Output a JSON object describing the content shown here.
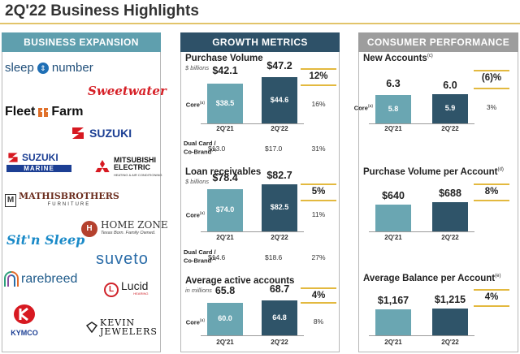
{
  "page": {
    "title": "2Q'22 Business Highlights"
  },
  "headers": {
    "business": "BUSINESS EXPANSION",
    "growth": "GROWTH METRICS",
    "consumer": "CONSUMER PERFORMANCE"
  },
  "colors": {
    "light_bar": "#6aa6b2",
    "dark_bar": "#2f5469",
    "gold_accent": "#e3b93f",
    "biz_header": "#5f9fae",
    "growth_header": "#2e5168",
    "consumer_header": "#9d9d9d"
  },
  "logos": {
    "sleep_number_a": "sleep",
    "sleep_number_b": "number",
    "sweetwater": "Sweetwater",
    "fleet_farm_a": "Fleet",
    "fleet_farm_b": "Farm",
    "suzuki": "SUZUKI",
    "suzuki_marine_a": "SUZUKI",
    "suzuki_marine_b": "MARINE",
    "mitsubishi_a": "MITSUBISHI",
    "mitsubishi_b": "ELECTRIC",
    "mitsubishi_c": "HEATING & AIR CONDITIONING",
    "mathis_a": "MATHISBROTHERS",
    "mathis_b": "FURNITURE",
    "homezone_a": "HOME ZONE",
    "homezone_b": "Texas Born. Family Owned.",
    "sitnsleep": "Sit'n Sleep",
    "suveto": "suveto",
    "rarebreed": "rarebreed",
    "lucid_a": "Lucid",
    "lucid_b": "HEARING",
    "kymco": "KYMCO",
    "kevin_a": "KEVIN",
    "kevin_b": "JEWELERS"
  },
  "chart_data": [
    {
      "type": "bar",
      "title": "Purchase Volume",
      "subtitle": "$ billions",
      "categories": [
        "2Q'21",
        "2Q'22"
      ],
      "series": [
        {
          "name": "Total",
          "values": [
            42.1,
            47.2
          ]
        },
        {
          "name": "Core",
          "values": [
            38.5,
            44.6
          ]
        }
      ],
      "labels": [
        "$42.1",
        "$47.2"
      ],
      "core_labels": [
        "$38.5",
        "$44.6"
      ],
      "growth": "12%",
      "core_growth": "16%",
      "core_label": "Core",
      "dual_card": {
        "label_a": "Dual Card /",
        "label_b": "Co-Brand",
        "values": [
          "$13.0",
          "$17.0"
        ],
        "growth": "31%"
      },
      "ylim": [
        0,
        50
      ]
    },
    {
      "type": "bar",
      "title": "Loan receivables",
      "subtitle": "$ billions",
      "categories": [
        "2Q'21",
        "2Q'22"
      ],
      "series": [
        {
          "name": "Total",
          "values": [
            78.4,
            82.7
          ]
        },
        {
          "name": "Core",
          "values": [
            74.0,
            82.5
          ]
        }
      ],
      "labels": [
        "$78.4",
        "$82.7"
      ],
      "core_labels": [
        "$74.0",
        "$82.5"
      ],
      "growth": "5%",
      "core_growth": "11%",
      "core_label": "Core",
      "dual_card": {
        "label_a": "Dual Card /",
        "label_b": "Co-Brand",
        "values": [
          "$14.6",
          "$18.6"
        ],
        "growth": "27%"
      },
      "ylim": [
        0,
        85
      ]
    },
    {
      "type": "bar",
      "title": "Average active accounts",
      "subtitle": "in millions",
      "categories": [
        "2Q'21",
        "2Q'22"
      ],
      "series": [
        {
          "name": "Total",
          "values": [
            65.8,
            68.7
          ]
        },
        {
          "name": "Core",
          "values": [
            60.0,
            64.8
          ]
        }
      ],
      "labels": [
        "65.8",
        "68.7"
      ],
      "core_labels": [
        "60.0",
        "64.8"
      ],
      "growth": "4%",
      "core_growth": "8%",
      "core_label": "Core",
      "ylim": [
        0,
        72
      ]
    },
    {
      "type": "bar",
      "title": "New Accounts",
      "categories": [
        "2Q'21",
        "2Q'22"
      ],
      "series": [
        {
          "name": "Total",
          "values": [
            6.3,
            6.0
          ]
        },
        {
          "name": "Core",
          "values": [
            5.8,
            5.9
          ]
        }
      ],
      "labels": [
        "6.3",
        "6.0"
      ],
      "core_labels": [
        "5.8",
        "5.9"
      ],
      "growth": "(6)%",
      "core_growth": "3%",
      "core_label": "Core",
      "ylim": [
        0,
        6.6
      ]
    },
    {
      "type": "bar",
      "title": "Purchase Volume per Account",
      "categories": [
        "2Q'21",
        "2Q'22"
      ],
      "values": [
        640,
        688
      ],
      "labels": [
        "$640",
        "$688"
      ],
      "growth": "8%",
      "ylim": [
        0,
        1000
      ]
    },
    {
      "type": "bar",
      "title": "Average Balance per Account",
      "categories": [
        "2Q'21",
        "2Q'22"
      ],
      "values": [
        1167,
        1215
      ],
      "labels": [
        "$1,167",
        "$1,215"
      ],
      "growth": "4%",
      "ylim": [
        0,
        1700
      ]
    }
  ]
}
